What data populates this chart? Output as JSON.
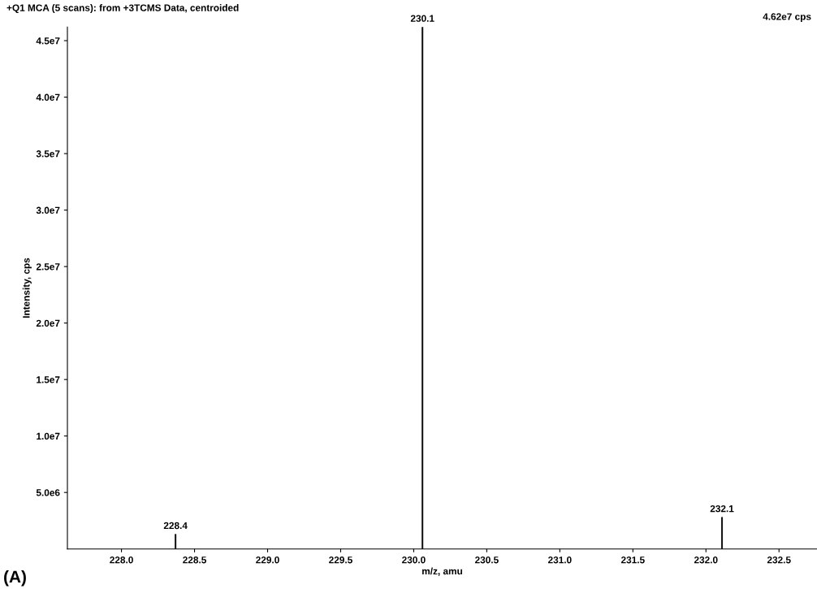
{
  "chart_data": {
    "type": "bar",
    "title": "+Q1 MCA (5 scans): from +3TCMS Data, centroided",
    "xlabel": "m/z, amu",
    "ylabel": "Intensity, cps",
    "x": [
      228.37,
      230.06,
      232.11
    ],
    "values": [
      1300000,
      46200000,
      2800000
    ],
    "color": "#000000",
    "xlim": [
      227.63,
      232.76
    ],
    "ylim": [
      0,
      46200000
    ],
    "xticks": [
      {
        "value": 228.0,
        "label": "228.0"
      },
      {
        "value": 228.5,
        "label": "228.5"
      },
      {
        "value": 229.0,
        "label": "229.0"
      },
      {
        "value": 229.5,
        "label": "229.5"
      },
      {
        "value": 230.0,
        "label": "230.0"
      },
      {
        "value": 230.5,
        "label": "230.5"
      },
      {
        "value": 231.0,
        "label": "231.0"
      },
      {
        "value": 231.5,
        "label": "231.5"
      },
      {
        "value": 232.0,
        "label": "232.0"
      },
      {
        "value": 232.5,
        "label": "232.5"
      }
    ],
    "yticks": [
      {
        "value": 5000000,
        "label": "5.0e6"
      },
      {
        "value": 10000000,
        "label": "1.0e7"
      },
      {
        "value": 15000000,
        "label": "1.5e7"
      },
      {
        "value": 20000000,
        "label": "2.0e7"
      },
      {
        "value": 25000000,
        "label": "2.5e7"
      },
      {
        "value": 30000000,
        "label": "3.0e7"
      },
      {
        "value": 35000000,
        "label": "3.5e7"
      },
      {
        "value": 40000000,
        "label": "4.0e7"
      },
      {
        "value": 45000000,
        "label": "4.5e7"
      }
    ],
    "grid": false,
    "legend": false,
    "annotations": [
      {
        "text": "228.4",
        "x": 228.37,
        "y": 1300000
      },
      {
        "text": "230.1",
        "x": 230.06,
        "y": 46200000
      },
      {
        "text": "232.1",
        "x": 232.11,
        "y": 2800000
      },
      "4.62e7 cps",
      "(A)"
    ]
  }
}
